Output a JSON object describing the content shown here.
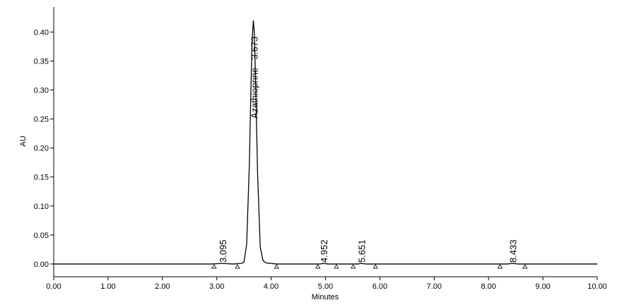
{
  "chart_data": {
    "type": "line",
    "x_label": "Minutes",
    "y_label": "AU",
    "color": "#000000",
    "x": [
      0,
      2.9,
      3.095,
      3.3,
      3.45,
      3.5,
      3.55,
      3.6,
      3.63,
      3.65,
      3.673,
      3.69,
      3.72,
      3.75,
      3.8,
      3.85,
      3.9,
      4.0,
      4.1,
      4.9,
      4.952,
      5.05,
      5.6,
      5.651,
      5.75,
      8.35,
      8.433,
      8.55,
      10.0
    ],
    "values": [
      0,
      0,
      0.001,
      0,
      0.001,
      0.003,
      0.034,
      0.174,
      0.309,
      0.385,
      0.42,
      0.4,
      0.292,
      0.158,
      0.029,
      0.006,
      0.002,
      0.001,
      0,
      0,
      0.001,
      0,
      0,
      0.001,
      0,
      0,
      0.001,
      0,
      0
    ],
    "peaks": [
      {
        "label": "3.095",
        "x": 3.095
      },
      {
        "label": "Azathioprine - 3.673",
        "x": 3.673
      },
      {
        "label": "4.952",
        "x": 4.952
      },
      {
        "label": "5.651",
        "x": 5.651
      },
      {
        "label": "8.433",
        "x": 8.433
      }
    ],
    "baseline_markers": [
      2.95,
      3.38,
      4.1,
      4.86,
      5.2,
      5.51,
      5.92,
      8.21,
      8.67
    ],
    "xlim": [
      0,
      10
    ],
    "ylim": [
      -0.022,
      0.443
    ],
    "xticks": [
      {
        "value": 0,
        "label": "0.00"
      },
      {
        "value": 1,
        "label": "1.00"
      },
      {
        "value": 2,
        "label": "2.00"
      },
      {
        "value": 3,
        "label": "3.00"
      },
      {
        "value": 4,
        "label": "4.00"
      },
      {
        "value": 5,
        "label": "5.00"
      },
      {
        "value": 6,
        "label": "6.00"
      },
      {
        "value": 7,
        "label": "7.00"
      },
      {
        "value": 8,
        "label": "8.00"
      },
      {
        "value": 9,
        "label": "9.00"
      },
      {
        "value": 10,
        "label": "10.00"
      }
    ],
    "yticks": [
      {
        "value": 0,
        "label": "0.00"
      },
      {
        "value": 0.05,
        "label": "0.05"
      },
      {
        "value": 0.1,
        "label": "0.10"
      },
      {
        "value": 0.15,
        "label": "0.15"
      },
      {
        "value": 0.2,
        "label": "0.20"
      },
      {
        "value": 0.25,
        "label": "0.25"
      },
      {
        "value": 0.3,
        "label": "0.30"
      },
      {
        "value": 0.35,
        "label": "0.35"
      },
      {
        "value": 0.4,
        "label": "0.40"
      }
    ]
  }
}
